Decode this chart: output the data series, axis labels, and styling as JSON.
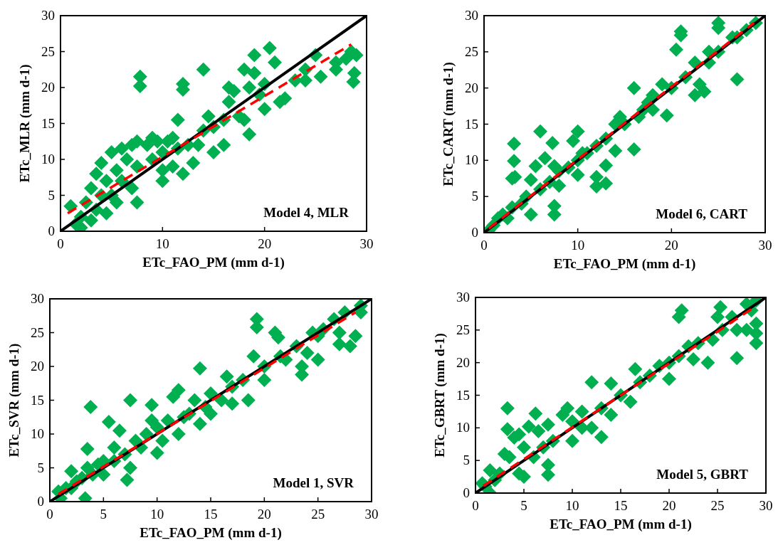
{
  "chart_data": [
    {
      "type": "scatter",
      "xlabel": "ETc_FAO_PM (mm d-1)",
      "ylabel": "ETc_MLR (mm d-1)",
      "annotations": [
        "Model 4, MLR"
      ],
      "xlim": [
        0,
        30
      ],
      "ylim": [
        0,
        30
      ],
      "xticks": [
        0,
        10,
        20,
        30
      ],
      "yticks": [
        0,
        5,
        10,
        15,
        20,
        25,
        30
      ],
      "series": [
        {
          "type": "scatter",
          "marker": "diamond",
          "color": "#00b050",
          "x": [
            1,
            1.5,
            2,
            2,
            2.5,
            3,
            3,
            3.5,
            3.5,
            4,
            4,
            4.5,
            4.5,
            5,
            5,
            5.5,
            5.5,
            6,
            6,
            6.5,
            7,
            7,
            7.5,
            7.5,
            7.5,
            7.8,
            7.8,
            8.5,
            9,
            9,
            9.5,
            10,
            10,
            10,
            10.5,
            11,
            11,
            11.5,
            11.5,
            12,
            12,
            12,
            12.5,
            13,
            13.5,
            14,
            14,
            14.5,
            15,
            15,
            16,
            16,
            16.5,
            16.5,
            17,
            17.5,
            18,
            18,
            18.5,
            18.5,
            19,
            19,
            19.5,
            20,
            20,
            20.5,
            21,
            21.5,
            22,
            23,
            24,
            24,
            25,
            25.5,
            27,
            27,
            28,
            28.5,
            28.7,
            29,
            28.8
          ],
          "values": [
            3.5,
            1,
            0.5,
            2,
            4,
            6,
            1.5,
            8,
            3,
            9.5,
            5,
            7,
            2.5,
            11,
            5,
            8.5,
            4,
            11.5,
            7,
            10,
            12,
            6,
            4,
            9,
            12.5,
            21.5,
            20.2,
            12,
            13,
            10,
            12.5,
            11,
            7,
            8.5,
            12.5,
            9,
            13,
            15.5,
            11.5,
            20.5,
            19.7,
            8,
            12,
            9.5,
            12,
            14,
            22.5,
            16,
            11,
            14.5,
            12,
            15.5,
            18,
            20,
            19.5,
            16,
            22.5,
            15.5,
            13.5,
            20,
            24.5,
            22,
            19,
            17,
            20.5,
            25.5,
            23.5,
            18,
            18.5,
            21,
            22.5,
            21,
            24.5,
            21.5,
            23.5,
            22.5,
            24,
            25,
            20.8,
            24.5,
            22
          ]
        },
        {
          "type": "line",
          "color": "#000000",
          "line_style": "solid",
          "x": [
            0,
            30
          ],
          "values": [
            0,
            30
          ]
        },
        {
          "type": "line",
          "color": "#ff0000",
          "line_style": "dashed",
          "x": [
            0.7,
            28.5
          ],
          "values": [
            2.5,
            26
          ]
        }
      ]
    },
    {
      "type": "scatter",
      "xlabel": "ETc_FAO_PM (mm d-1)",
      "ylabel": "ETc_CART (mm d-1)",
      "annotations": [
        "Model 6, CART"
      ],
      "xlim": [
        0,
        30
      ],
      "ylim": [
        0,
        30
      ],
      "xticks": [
        0,
        10,
        20,
        30
      ],
      "yticks": [
        0,
        5,
        10,
        15,
        20,
        25,
        30
      ],
      "series": [
        {
          "type": "scatter",
          "marker": "diamond",
          "color": "#00b050",
          "x": [
            0.5,
            1,
            1.5,
            2,
            2.5,
            3,
            3.2,
            3.2,
            3,
            3.3,
            4,
            4.5,
            5,
            5,
            5.5,
            6,
            6,
            6.5,
            7,
            7.3,
            7.5,
            7.5,
            7.5,
            8,
            8,
            9,
            9.5,
            10,
            10,
            10,
            10.5,
            11,
            12,
            12,
            12,
            13,
            13,
            13,
            14,
            14,
            14.5,
            15,
            16,
            16,
            16.5,
            17,
            17.5,
            18,
            18,
            19,
            19.5,
            20,
            20.5,
            21,
            21,
            21.5,
            22.5,
            22.5,
            23,
            23.5,
            24,
            24,
            25,
            25,
            25,
            26.5,
            27,
            27,
            28,
            29
          ],
          "values": [
            0.3,
            1,
            2,
            2.5,
            2,
            3.5,
            12.3,
            9.9,
            7.5,
            7.7,
            4,
            5,
            7.3,
            2.5,
            9.2,
            14,
            6,
            10.3,
            7,
            12.4,
            3.7,
            2.5,
            9.2,
            6.5,
            8.5,
            9,
            12.7,
            14,
            10,
            8,
            11,
            11,
            12,
            7.7,
            6.4,
            9.3,
            6.8,
            13,
            11.3,
            15,
            16,
            15,
            11.5,
            20,
            16,
            17,
            18,
            19,
            17,
            20.5,
            16.2,
            20,
            25.3,
            27.8,
            27.3,
            21.5,
            19,
            23.5,
            20.5,
            19.5,
            25,
            23.5,
            28.3,
            29,
            25,
            27,
            21.2,
            27,
            28,
            29
          ]
        },
        {
          "type": "line",
          "color": "#000000",
          "line_style": "solid",
          "x": [
            0,
            30
          ],
          "values": [
            0,
            30
          ]
        },
        {
          "type": "line",
          "color": "#ff0000",
          "line_style": "dashed",
          "x": [
            0.5,
            28.8
          ],
          "values": [
            0.6,
            29
          ]
        }
      ]
    },
    {
      "type": "scatter",
      "xlabel": "ETc_FAO_PM (mm d-1)",
      "ylabel": "ETc_SVR (mm d-1)",
      "annotations": [
        "Model 1, SVR"
      ],
      "xlim": [
        0,
        30
      ],
      "ylim": [
        0,
        30
      ],
      "xticks": [
        0,
        5,
        10,
        15,
        20,
        25,
        30
      ],
      "yticks": [
        0,
        5,
        10,
        15,
        20,
        25,
        30
      ],
      "series": [
        {
          "type": "scatter",
          "marker": "diamond",
          "color": "#00b050",
          "x": [
            0.8,
            1,
            1.5,
            2,
            2,
            2.5,
            3,
            3.3,
            3.5,
            3.5,
            3.8,
            4,
            4.5,
            5,
            5,
            5.5,
            6,
            6,
            6.5,
            7,
            7.2,
            7.5,
            7.5,
            8,
            8.5,
            9,
            9.5,
            9.5,
            10,
            10,
            10.5,
            11,
            11.5,
            12,
            12,
            12.5,
            13,
            13.5,
            14,
            14,
            14.5,
            15,
            15,
            16,
            16.5,
            17,
            17,
            18,
            18.5,
            19,
            19.3,
            19.3,
            20,
            20,
            21,
            21.3,
            21.5,
            22,
            23,
            23.5,
            23.5,
            24,
            24.5,
            25,
            25,
            25.5,
            26.5,
            27,
            27,
            27.5,
            28,
            28.5,
            29,
            29
          ],
          "values": [
            1.5,
            0.5,
            2,
            4.5,
            2,
            3,
            3.5,
            0.5,
            7.8,
            5,
            14,
            4,
            5.5,
            6,
            4,
            11.8,
            6,
            8,
            10.5,
            7,
            3.2,
            15,
            5,
            9,
            8,
            10,
            14.3,
            12,
            11,
            7.2,
            9,
            12,
            15.5,
            16.5,
            10,
            12.5,
            13,
            15,
            19.7,
            11.5,
            14,
            16,
            13,
            15,
            18.5,
            17,
            14.5,
            18,
            15,
            21.5,
            27,
            25.8,
            20,
            18,
            25,
            24.3,
            21.5,
            21,
            23,
            20,
            18.8,
            22,
            25,
            21,
            24.5,
            25.5,
            27,
            25,
            23.3,
            28,
            23,
            24.5,
            29,
            28
          ]
        },
        {
          "type": "line",
          "color": "#000000",
          "line_style": "solid",
          "x": [
            0,
            30
          ],
          "values": [
            0,
            30
          ]
        },
        {
          "type": "line",
          "color": "#ff0000",
          "line_style": "dashed",
          "x": [
            0.8,
            28.5
          ],
          "values": [
            1.1,
            28
          ]
        }
      ]
    },
    {
      "type": "scatter",
      "xlabel": "ETc_FAO_PM (mm d-1)",
      "ylabel": "ETc_GBRT (mm d-1)",
      "annotations": [
        "Model 5, GBRT"
      ],
      "xlim": [
        0,
        30
      ],
      "ylim": [
        0,
        30
      ],
      "xticks": [
        0,
        5,
        10,
        15,
        20,
        25,
        30
      ],
      "yticks": [
        0,
        5,
        10,
        15,
        20,
        25,
        30
      ],
      "series": [
        {
          "type": "scatter",
          "marker": "diamond",
          "color": "#00b050",
          "x": [
            0.7,
            1,
            1.5,
            1.5,
            2,
            2.5,
            3,
            3.3,
            3.3,
            3.5,
            4,
            4.5,
            4.5,
            5,
            5,
            5.5,
            6,
            6.2,
            6.5,
            7,
            7.5,
            7.5,
            7.5,
            8,
            9,
            9.5,
            10,
            10,
            11,
            11,
            12,
            12,
            13,
            13,
            14,
            14,
            15,
            16,
            16.5,
            17,
            18,
            19,
            20,
            20,
            21,
            21.3,
            21,
            22,
            22.5,
            23,
            24,
            24.5,
            25,
            25.3,
            25.5,
            26.5,
            27,
            27,
            28,
            28,
            28.5,
            29,
            29,
            29,
            29
          ],
          "values": [
            1.5,
            1,
            0,
            3.5,
            2,
            3,
            6,
            13,
            9.8,
            5.5,
            8.5,
            9,
            3,
            2.5,
            7,
            10.2,
            5.5,
            12.2,
            9.5,
            7,
            10.5,
            4.3,
            2.8,
            8,
            12,
            13,
            8,
            11,
            10,
            12.5,
            17,
            10,
            8.6,
            13,
            16.8,
            12,
            15,
            14,
            19,
            17,
            18,
            19.5,
            17.5,
            20,
            27,
            28,
            21,
            22.5,
            20.5,
            23,
            20,
            23.5,
            27,
            28.5,
            25,
            27,
            20.7,
            25,
            29,
            25,
            28,
            29.5,
            23,
            26,
            24.5
          ]
        },
        {
          "type": "line",
          "color": "#000000",
          "line_style": "solid",
          "x": [
            0,
            30
          ],
          "values": [
            0,
            30
          ]
        },
        {
          "type": "line",
          "color": "#ff0000",
          "line_style": "dashed",
          "x": [
            0.8,
            28.5
          ],
          "values": [
            1.1,
            28.2
          ]
        }
      ]
    }
  ]
}
